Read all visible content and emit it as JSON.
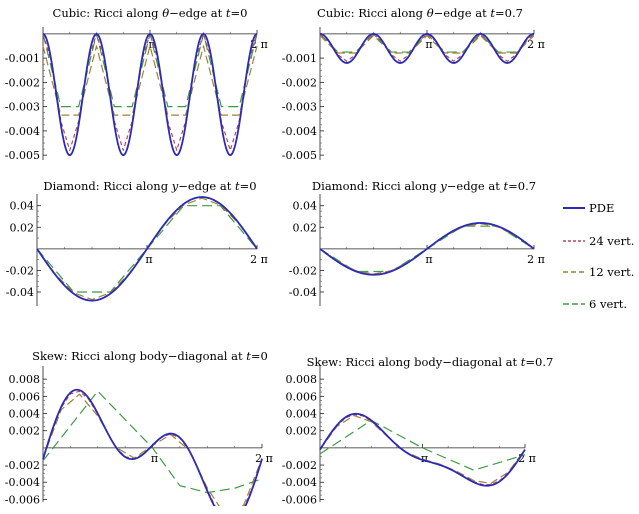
{
  "chart_data": [
    {
      "type": "line",
      "title": "Cubic: Ricci along θ−edge at t=0",
      "title_parts": [
        "Cubic: Ricci along ",
        "θ",
        "−edge at ",
        "t",
        "=0"
      ],
      "xlim": [
        0,
        6.2832
      ],
      "ylim": [
        -0.0052,
        0.0002
      ],
      "xticks": [
        {
          "v": 3.1416,
          "label": "π"
        },
        {
          "v": 6.2832,
          "label": "2 π"
        }
      ],
      "yticks": [
        {
          "v": -0.001,
          "label": "-0.001"
        },
        {
          "v": -0.002,
          "label": "-0.002"
        },
        {
          "v": -0.003,
          "label": "-0.003"
        },
        {
          "v": -0.004,
          "label": "-0.004"
        },
        {
          "v": -0.005,
          "label": "-0.005"
        }
      ],
      "series": [
        {
          "name": "PDE",
          "style": "pde",
          "fn": "cos",
          "params": {
            "c": -0.0025,
            "a": 0.0025,
            "k": 4,
            "p": 0
          }
        },
        {
          "name": "24 vert.",
          "style": "v24",
          "fn": "poly",
          "params": {
            "c": -0.0024,
            "a": 0.0024,
            "k": 4,
            "p": 0,
            "n": 24
          }
        },
        {
          "name": "12 vert.",
          "style": "v12",
          "fn": "poly",
          "params": {
            "c": -0.0024,
            "a": 0.0019,
            "k": 4,
            "p": 0,
            "n": 12
          }
        },
        {
          "name": "6 vert.",
          "style": "v6",
          "fn": "polyclip",
          "params": {
            "c": -0.0024,
            "a": 0.0024,
            "k": 4,
            "p": 0,
            "n": 12,
            "lo": -0.003
          }
        }
      ]
    },
    {
      "type": "line",
      "title": "Cubic: Ricci along θ−edge at t=0.7",
      "title_parts": [
        "Cubic: Ricci along ",
        "θ",
        "−edge at ",
        "t",
        "=0.7"
      ],
      "xlim": [
        0,
        6.2832
      ],
      "ylim": [
        -0.0052,
        0.0002
      ],
      "xticks": [
        {
          "v": 3.1416,
          "label": "π"
        },
        {
          "v": 6.2832,
          "label": "2 π"
        }
      ],
      "yticks": [
        {
          "v": -0.001,
          "label": "-0.001"
        },
        {
          "v": -0.002,
          "label": "-0.002"
        },
        {
          "v": -0.003,
          "label": "-0.003"
        },
        {
          "v": -0.004,
          "label": "-0.004"
        },
        {
          "v": -0.005,
          "label": "-0.005"
        }
      ],
      "series": [
        {
          "name": "PDE",
          "style": "pde",
          "fn": "cos",
          "params": {
            "c": -0.0006,
            "a": 0.0006,
            "k": 4,
            "p": 0
          }
        },
        {
          "name": "24 vert.",
          "style": "v24",
          "fn": "poly",
          "params": {
            "c": -0.00058,
            "a": 0.00055,
            "k": 4,
            "p": 0,
            "n": 24
          }
        },
        {
          "name": "12 vert.",
          "style": "v12",
          "fn": "poly",
          "params": {
            "c": -0.00055,
            "a": 0.00048,
            "k": 4,
            "p": 0,
            "n": 12
          }
        },
        {
          "name": "6 vert.",
          "style": "v6",
          "fn": "polyclip",
          "params": {
            "c": -0.0005,
            "a": 0.0005,
            "k": 4,
            "p": 0,
            "n": 12,
            "lo": -0.0008
          }
        }
      ]
    },
    {
      "type": "line",
      "title": "Diamond: Ricci along y−edge at t=0",
      "title_parts": [
        "Diamond: Ricci along ",
        "y",
        "−edge at ",
        "t",
        "=0"
      ],
      "xlim": [
        0,
        6.2832
      ],
      "ylim": [
        -0.053,
        0.049
      ],
      "xticks": [
        {
          "v": 3.1416,
          "label": "π"
        },
        {
          "v": 6.2832,
          "label": "2 π"
        }
      ],
      "yticks": [
        {
          "v": 0.04,
          "label": "0.04"
        },
        {
          "v": 0.02,
          "label": "0.02"
        },
        {
          "v": -0.02,
          "label": "-0.02"
        },
        {
          "v": -0.04,
          "label": "-0.04"
        }
      ],
      "series": [
        {
          "name": "PDE",
          "style": "pde",
          "fn": "sin",
          "params": {
            "a": -0.048
          }
        },
        {
          "name": "24 vert.",
          "style": "v24",
          "fn": "poly",
          "params": {
            "c": 0,
            "a": -0.048,
            "k": 2,
            "p": 1.5708,
            "n": 24
          }
        },
        {
          "name": "12 vert.",
          "style": "v12",
          "fn": "poly",
          "params": {
            "c": 0,
            "a": -0.047,
            "k": 2,
            "p": 1.5708,
            "n": 12
          }
        },
        {
          "name": "6 vert.",
          "style": "v6",
          "fn": "trap",
          "params": {
            "a": -0.04,
            "x1": 1.0472,
            "x2": 2.0944
          }
        }
      ]
    },
    {
      "type": "line",
      "title": "Diamond: Ricci along y−edge at t=0.7",
      "title_parts": [
        "Diamond: Ricci along ",
        "y",
        "−edge at ",
        "t",
        "=0.7"
      ],
      "xlim": [
        0,
        6.2832
      ],
      "ylim": [
        -0.053,
        0.049
      ],
      "xticks": [
        {
          "v": 3.1416,
          "label": "π"
        },
        {
          "v": 6.2832,
          "label": "2 π"
        }
      ],
      "yticks": [
        {
          "v": 0.04,
          "label": "0.04"
        },
        {
          "v": 0.02,
          "label": "0.02"
        },
        {
          "v": -0.02,
          "label": "-0.02"
        },
        {
          "v": -0.04,
          "label": "-0.04"
        }
      ],
      "series": [
        {
          "name": "PDE",
          "style": "pde",
          "fn": "sin",
          "params": {
            "a": -0.024
          }
        },
        {
          "name": "24 vert.",
          "style": "v24",
          "fn": "poly",
          "params": {
            "c": 0,
            "a": -0.0238,
            "k": 2,
            "p": 1.5708,
            "n": 24
          }
        },
        {
          "name": "12 vert.",
          "style": "v12",
          "fn": "poly",
          "params": {
            "c": 0,
            "a": -0.0234,
            "k": 2,
            "p": 1.5708,
            "n": 12
          }
        },
        {
          "name": "6 vert.",
          "style": "v6",
          "fn": "trap",
          "params": {
            "a": -0.021,
            "x1": 1.0472,
            "x2": 2.0944
          }
        }
      ]
    },
    {
      "type": "line",
      "title": "Skew: Ricci along body−diagonal at t=0",
      "title_parts": [
        "Skew: Ricci along body−diagonal at ",
        "",
        "",
        "t",
        "=0"
      ],
      "xlim": [
        0,
        6.2832
      ],
      "ylim": [
        -0.0063,
        0.0093
      ],
      "xticks": [
        {
          "v": 3.1416,
          "label": "π"
        },
        {
          "v": 6.2832,
          "label": "2 π"
        }
      ],
      "yticks": [
        {
          "v": 0.008,
          "label": "0.008"
        },
        {
          "v": 0.006,
          "label": "0.006"
        },
        {
          "v": 0.004,
          "label": "0.004"
        },
        {
          "v": 0.002,
          "label": "0.002"
        },
        {
          "v": -0.002,
          "label": "-0.002"
        },
        {
          "v": -0.004,
          "label": "-0.004"
        },
        {
          "v": -0.006,
          "label": "-0.006"
        }
      ],
      "series": [
        {
          "name": "PDE",
          "style": "pde",
          "fn": "skew",
          "params": {
            "s": 1.0
          }
        },
        {
          "name": "24 vert.",
          "style": "v24",
          "fn": "skewpoly",
          "params": {
            "s": 0.98,
            "n": 24
          }
        },
        {
          "name": "12 vert.",
          "style": "v12",
          "fn": "skewpoly",
          "params": {
            "s": 0.93,
            "n": 12
          }
        },
        {
          "name": "6 vert.",
          "style": "v6",
          "points": [
            [
              0,
              -0.0015
            ],
            [
              1.5708,
              0.0066
            ],
            [
              3.1416,
              0.0
            ],
            [
              3.927,
              -0.0044
            ],
            [
              4.7124,
              -0.0052
            ],
            [
              5.4978,
              -0.0047
            ],
            [
              6.2832,
              -0.0036
            ]
          ]
        }
      ]
    },
    {
      "type": "line",
      "title": "Skew: Ricci along body−diagonal at t=0.7",
      "title_parts": [
        "Skew: Ricci along body−diagonal at ",
        "",
        "",
        "t",
        "=0.7"
      ],
      "xlim": [
        0,
        6.2832
      ],
      "ylim": [
        -0.0063,
        0.0093
      ],
      "xticks": [
        {
          "v": 3.1416,
          "label": "π"
        },
        {
          "v": 6.2832,
          "label": "2 π"
        }
      ],
      "yticks": [
        {
          "v": 0.008,
          "label": "0.008"
        },
        {
          "v": 0.006,
          "label": "0.006"
        },
        {
          "v": 0.004,
          "label": "0.004"
        },
        {
          "v": 0.002,
          "label": "0.002"
        },
        {
          "v": -0.002,
          "label": "-0.002"
        },
        {
          "v": -0.004,
          "label": "-0.004"
        },
        {
          "v": -0.006,
          "label": "-0.006"
        }
      ],
      "series": [
        {
          "name": "PDE",
          "style": "pde",
          "fn": "skew07",
          "params": {
            "s": 1.0
          }
        },
        {
          "name": "24 vert.",
          "style": "v24",
          "fn": "skew07poly",
          "params": {
            "s": 0.98,
            "n": 24
          }
        },
        {
          "name": "12 vert.",
          "style": "v12",
          "fn": "skew07poly",
          "params": {
            "s": 0.95,
            "n": 12
          }
        },
        {
          "name": "6 vert.",
          "style": "v6",
          "points": [
            [
              0,
              -0.0007
            ],
            [
              1.5708,
              0.0032
            ],
            [
              3.1416,
              0.0
            ],
            [
              4.7124,
              -0.0026
            ],
            [
              6.2832,
              -0.0008
            ]
          ]
        }
      ]
    }
  ],
  "legend": {
    "items": [
      {
        "label": "PDE",
        "style": "pde"
      },
      {
        "label": "24 vert.",
        "style": "v24"
      },
      {
        "label": "12 vert.",
        "style": "v12"
      },
      {
        "label": "6 vert.",
        "style": "v6"
      }
    ]
  },
  "styles": {
    "pde": {
      "color": "#2b2bb8",
      "width": 1.8,
      "dash": ""
    },
    "v24": {
      "color": "#b5495b",
      "width": 1.2,
      "dash": "4,3"
    },
    "v12": {
      "color": "#a08235",
      "width": 1.2,
      "dash": "8,4"
    },
    "v6": {
      "color": "#3f9b43",
      "width": 1.2,
      "dash": "10,5"
    }
  }
}
